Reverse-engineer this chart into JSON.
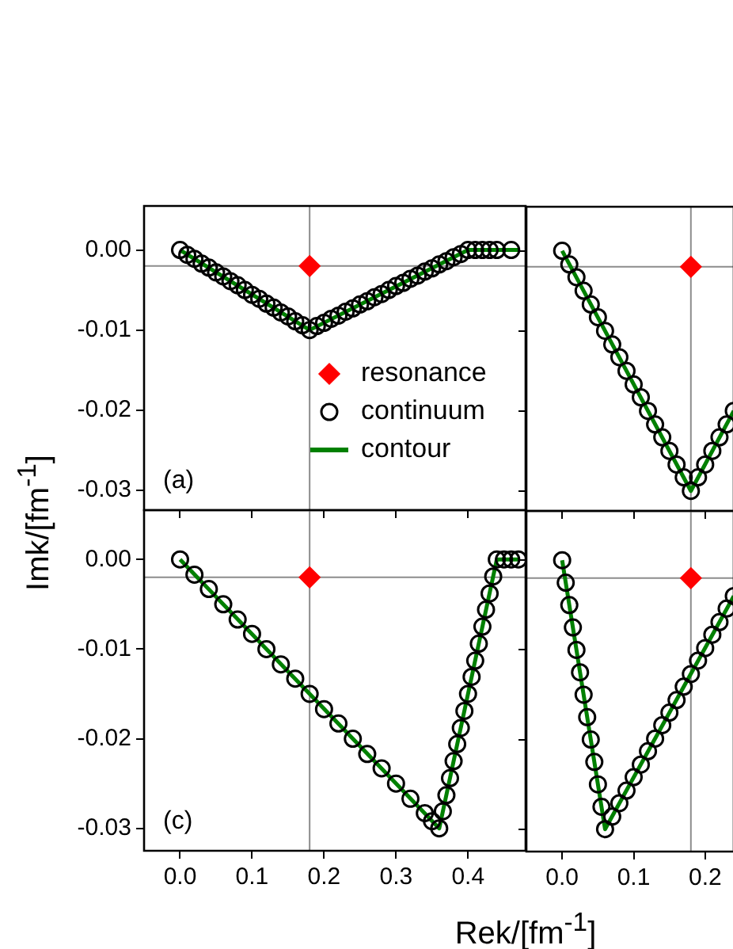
{
  "chart_data": [
    {
      "type": "scatter",
      "ylabel": "Imk/[fm$^{-1}$]",
      "annotations": [
        "(a)"
      ],
      "xlim": [
        -0.05,
        0.48
      ],
      "ylim": [
        -0.0325,
        0.0055
      ],
      "xticks": [
        {
          "value": 0,
          "label": null
        },
        {
          "value": 0.1,
          "label": null
        },
        {
          "value": 0.2,
          "label": null
        },
        {
          "value": 0.3,
          "label": null
        },
        {
          "value": 0.4,
          "label": null
        }
      ],
      "yticks": [
        {
          "value": 0,
          "label": "0.00"
        },
        {
          "value": -0.01,
          "label": "-0.01"
        },
        {
          "value": -0.02,
          "label": "-0.02"
        },
        {
          "value": -0.03,
          "label": "-0.03"
        }
      ],
      "tick_labels": "y",
      "legend": "bottom right",
      "ref_lines": [
        {
          "axis": "x",
          "value": 0.18,
          "color": "#8c8c8c"
        },
        {
          "axis": "y",
          "value": -0.002,
          "color": "#8c8c8c"
        }
      ],
      "series": [
        {
          "name": "resonance",
          "type": "scatter",
          "marker": "diamond",
          "color": "#ff0000",
          "x": [
            0.18
          ],
          "values": [
            -0.002
          ]
        },
        {
          "name": "continuum",
          "type": "scatter",
          "marker": "circle",
          "color": "#000000",
          "x": [
            0,
            0.01,
            0.02,
            0.03,
            0.04,
            0.05,
            0.06,
            0.07,
            0.08,
            0.09,
            0.1,
            0.11,
            0.12,
            0.13,
            0.14,
            0.15,
            0.16,
            0.17,
            0.18,
            0.19,
            0.2,
            0.21,
            0.22,
            0.23,
            0.24,
            0.25,
            0.26,
            0.27,
            0.28,
            0.29,
            0.3,
            0.31,
            0.32,
            0.33,
            0.34,
            0.35,
            0.36,
            0.37,
            0.38,
            0.39,
            0.4,
            0.41,
            0.42,
            0.43,
            0.44,
            0.46
          ],
          "values": [
            0,
            -0.0006,
            -0.0011,
            -0.0017,
            -0.0022,
            -0.0028,
            -0.0033,
            -0.0039,
            -0.0044,
            -0.005,
            -0.0056,
            -0.0061,
            -0.0067,
            -0.0072,
            -0.0078,
            -0.0083,
            -0.0089,
            -0.0094,
            -0.01,
            -0.0095,
            -0.0091,
            -0.0086,
            -0.0082,
            -0.0077,
            -0.0073,
            -0.0068,
            -0.0064,
            -0.0059,
            -0.0055,
            -0.005,
            -0.0045,
            -0.0041,
            -0.0036,
            -0.0032,
            -0.0027,
            -0.0023,
            -0.0018,
            -0.0014,
            -0.0009,
            -0.0005,
            0,
            0,
            0,
            0,
            0,
            0
          ]
        },
        {
          "name": "contour",
          "type": "line",
          "color": "#008000",
          "x": [
            0,
            0.18,
            0.4,
            0.47
          ],
          "values": [
            0,
            -0.01,
            0,
            0
          ]
        }
      ]
    },
    {
      "type": "scatter",
      "xlim": [
        -0.05,
        0.24
      ],
      "ylim": [
        -0.0325,
        0.0055
      ],
      "xticks": [
        {
          "value": 0,
          "label": null
        },
        {
          "value": 0.1,
          "label": null
        },
        {
          "value": 0.2,
          "label": null
        }
      ],
      "yticks": [
        {
          "value": 0,
          "label": null
        },
        {
          "value": -0.01,
          "label": null
        },
        {
          "value": -0.02,
          "label": null
        },
        {
          "value": -0.03,
          "label": null
        }
      ],
      "tick_labels": false,
      "ref_lines": [
        {
          "axis": "x",
          "value": 0.18,
          "color": "#8c8c8c"
        },
        {
          "axis": "y",
          "value": -0.002,
          "color": "#8c8c8c"
        }
      ],
      "series": [
        {
          "type": "scatter",
          "marker": "diamond",
          "color": "#ff0000",
          "x": [
            0.18
          ],
          "values": [
            -0.002
          ]
        },
        {
          "type": "scatter",
          "marker": "circle",
          "color": "#000000",
          "x": [
            0,
            0.01,
            0.02,
            0.03,
            0.04,
            0.05,
            0.06,
            0.07,
            0.08,
            0.09,
            0.1,
            0.11,
            0.12,
            0.13,
            0.14,
            0.15,
            0.16,
            0.17,
            0.18,
            0.19,
            0.2,
            0.21,
            0.22,
            0.23,
            0.24
          ],
          "values": [
            0,
            -0.0017,
            -0.0033,
            -0.005,
            -0.0067,
            -0.0083,
            -0.01,
            -0.0117,
            -0.0133,
            -0.015,
            -0.0167,
            -0.0183,
            -0.02,
            -0.0217,
            -0.0233,
            -0.025,
            -0.0267,
            -0.0283,
            -0.03,
            -0.0283,
            -0.0267,
            -0.025,
            -0.0233,
            -0.0217,
            -0.02
          ]
        },
        {
          "type": "line",
          "color": "#008000",
          "x": [
            0,
            0.18,
            0.24
          ],
          "values": [
            0,
            -0.03,
            -0.02
          ]
        }
      ]
    },
    {
      "type": "scatter",
      "xlabel": "Rek/[fm$^{-1}$]",
      "annotations": [
        "(c)"
      ],
      "xlim": [
        -0.05,
        0.48
      ],
      "ylim": [
        -0.0325,
        0.0055
      ],
      "xticks": [
        {
          "value": 0,
          "label": "0.0"
        },
        {
          "value": 0.1,
          "label": "0.1"
        },
        {
          "value": 0.2,
          "label": "0.2"
        },
        {
          "value": 0.3,
          "label": "0.3"
        },
        {
          "value": 0.4,
          "label": "0.4"
        }
      ],
      "yticks": [
        {
          "value": 0,
          "label": "0.00"
        },
        {
          "value": -0.01,
          "label": "-0.01"
        },
        {
          "value": -0.02,
          "label": "-0.02"
        },
        {
          "value": -0.03,
          "label": "-0.03"
        }
      ],
      "ref_lines": [
        {
          "axis": "x",
          "value": 0.18,
          "color": "#8c8c8c"
        },
        {
          "axis": "y",
          "value": -0.002,
          "color": "#8c8c8c"
        }
      ],
      "series": [
        {
          "type": "scatter",
          "marker": "diamond",
          "color": "#ff0000",
          "x": [
            0.18
          ],
          "values": [
            -0.002
          ]
        },
        {
          "type": "scatter",
          "marker": "circle",
          "color": "#000000",
          "x": [
            0,
            0.02,
            0.04,
            0.06,
            0.08,
            0.1,
            0.12,
            0.14,
            0.16,
            0.18,
            0.2,
            0.22,
            0.24,
            0.26,
            0.28,
            0.3,
            0.32,
            0.34,
            0.35,
            0.36,
            0.365,
            0.37,
            0.375,
            0.38,
            0.385,
            0.39,
            0.395,
            0.4,
            0.405,
            0.41,
            0.415,
            0.42,
            0.425,
            0.43,
            0.435,
            0.44,
            0.45,
            0.46,
            0.47
          ],
          "values": [
            0,
            -0.0017,
            -0.0033,
            -0.005,
            -0.0067,
            -0.0083,
            -0.01,
            -0.0117,
            -0.0133,
            -0.015,
            -0.0167,
            -0.0183,
            -0.02,
            -0.0217,
            -0.0233,
            -0.025,
            -0.0267,
            -0.0283,
            -0.0292,
            -0.03,
            -0.0281,
            -0.0263,
            -0.0244,
            -0.0225,
            -0.0206,
            -0.0188,
            -0.0169,
            -0.015,
            -0.0131,
            -0.0113,
            -0.0094,
            -0.0075,
            -0.0056,
            -0.0038,
            -0.0019,
            0,
            0,
            0,
            0
          ]
        },
        {
          "type": "line",
          "color": "#008000",
          "x": [
            0,
            0.36,
            0.44,
            0.47
          ],
          "values": [
            0,
            -0.03,
            0,
            0
          ]
        }
      ]
    },
    {
      "type": "scatter",
      "xlim": [
        -0.05,
        0.24
      ],
      "ylim": [
        -0.0325,
        0.0055
      ],
      "xticks": [
        {
          "value": 0,
          "label": "0.0"
        },
        {
          "value": 0.1,
          "label": "0.1"
        },
        {
          "value": 0.2,
          "label": "0.2"
        }
      ],
      "yticks": [
        {
          "value": 0,
          "label": null
        },
        {
          "value": -0.01,
          "label": null
        },
        {
          "value": -0.02,
          "label": null
        },
        {
          "value": -0.03,
          "label": null
        }
      ],
      "tick_labels": "x",
      "ref_lines": [
        {
          "axis": "x",
          "value": 0.18,
          "color": "#8c8c8c"
        },
        {
          "axis": "y",
          "value": -0.002,
          "color": "#8c8c8c"
        }
      ],
      "series": [
        {
          "type": "scatter",
          "marker": "diamond",
          "color": "#ff0000",
          "x": [
            0.18
          ],
          "values": [
            -0.002
          ]
        },
        {
          "type": "scatter",
          "marker": "circle",
          "color": "#000000",
          "x": [
            0,
            0.005,
            0.01,
            0.015,
            0.02,
            0.025,
            0.03,
            0.035,
            0.04,
            0.045,
            0.05,
            0.055,
            0.06,
            0.07,
            0.08,
            0.09,
            0.1,
            0.11,
            0.12,
            0.13,
            0.14,
            0.15,
            0.16,
            0.17,
            0.18,
            0.19,
            0.2,
            0.21,
            0.22,
            0.23,
            0.24
          ],
          "values": [
            0,
            -0.0025,
            -0.005,
            -0.0075,
            -0.01,
            -0.0125,
            -0.015,
            -0.0175,
            -0.02,
            -0.0225,
            -0.025,
            -0.0275,
            -0.03,
            -0.0286,
            -0.0271,
            -0.0257,
            -0.0242,
            -0.0228,
            -0.0213,
            -0.0199,
            -0.0184,
            -0.017,
            -0.0156,
            -0.0141,
            -0.0127,
            -0.0112,
            -0.0098,
            -0.0083,
            -0.0069,
            -0.0054,
            -0.004
          ]
        },
        {
          "type": "line",
          "color": "#008000",
          "x": [
            0,
            0.06,
            0.24
          ],
          "values": [
            0,
            -0.03,
            -0.004
          ]
        }
      ]
    }
  ]
}
